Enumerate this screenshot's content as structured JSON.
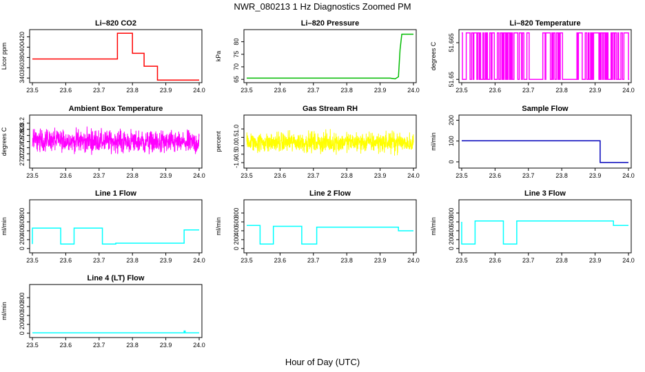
{
  "figure": {
    "title": "NWR_080213  1 Hz Diagnostics Zoomed PM",
    "xlabel": "Hour of Day (UTC)"
  },
  "chart_data": [
    {
      "type": "line",
      "title": "Li–820 CO2",
      "ylabel": "Licor ppm",
      "color": "#ff0000",
      "xlim": [
        23.5,
        24.0
      ],
      "xticks": [
        "23.5",
        "23.6",
        "23.7",
        "23.8",
        "23.9",
        "24.0"
      ],
      "ylim": [
        335,
        430
      ],
      "yticks": [
        340,
        360,
        380,
        400,
        420
      ],
      "series": [
        {
          "x": [
            23.5,
            23.755,
            23.755,
            23.8,
            23.8,
            23.835,
            23.835,
            23.875,
            23.875,
            24.0
          ],
          "y": [
            377,
            377,
            427,
            427,
            388,
            388,
            363,
            363,
            336,
            336
          ]
        }
      ]
    },
    {
      "type": "line",
      "title": "Li–820 Pressure",
      "ylabel": "kPa",
      "color": "#00bb00",
      "xlim": [
        23.5,
        24.0
      ],
      "xticks": [
        "23.5",
        "23.6",
        "23.7",
        "23.8",
        "23.9",
        "24.0"
      ],
      "ylim": [
        64.5,
        84
      ],
      "yticks": [
        65,
        70,
        75,
        80
      ],
      "series": [
        {
          "x": [
            23.5,
            23.93,
            23.945,
            23.955,
            23.96,
            23.965,
            24.0
          ],
          "y": [
            65.5,
            65.5,
            65.2,
            66,
            77,
            83,
            83
          ]
        }
      ]
    },
    {
      "type": "line",
      "title": "Li–820 Temperature",
      "ylabel": "degrees C",
      "color": "#ff00ff",
      "xlim": [
        23.5,
        24.0
      ],
      "xticks": [
        "23.5",
        "23.6",
        "23.7",
        "23.8",
        "23.9",
        "24.0"
      ],
      "ylim": [
        51.6495,
        51.6695
      ],
      "yticks": [
        51.65,
        51.665
      ],
      "series": [
        {
          "x": [
            23.5,
            24.0
          ],
          "y": [
            51.65,
            51.669
          ],
          "note": "rapid toggling between two levels"
        }
      ]
    },
    {
      "type": "line",
      "title": "Ambient Box Temperature",
      "ylabel": "degrees C",
      "color": "#ff00ff",
      "xlim": [
        23.5,
        24.0
      ],
      "xticks": [
        "23.5",
        "23.6",
        "23.7",
        "23.8",
        "23.9",
        "24.0"
      ],
      "ylim": [
        26.8,
        28.4
      ],
      "yticks": [
        27.0,
        27.2,
        27.4,
        27.6,
        27.8,
        28.0,
        28.2
      ],
      "series": [
        {
          "x": [
            23.5,
            24.0
          ],
          "y": [
            27.65,
            27.55
          ],
          "noise": 0.28
        }
      ]
    },
    {
      "type": "line",
      "title": "Gas Stream RH",
      "ylabel": "percent",
      "color": "#ffff00",
      "xlim": [
        23.5,
        24.0
      ],
      "xticks": [
        "23.5",
        "23.6",
        "23.7",
        "23.8",
        "23.9",
        "24.0"
      ],
      "ylim": [
        -1.2,
        1.7
      ],
      "yticks": [
        -1.0,
        -0.5,
        0.0,
        0.5,
        1.0
      ],
      "series": [
        {
          "x": [
            23.5,
            24.0
          ],
          "y": [
            0.2,
            0.2
          ],
          "noise": 0.45
        }
      ]
    },
    {
      "type": "line",
      "title": "Sample Flow",
      "ylabel": "ml/min",
      "color": "#0000bb",
      "xlim": [
        23.5,
        24.0
      ],
      "xticks": [
        "23.5",
        "23.6",
        "23.7",
        "23.8",
        "23.9",
        "24.0"
      ],
      "ylim": [
        -20,
        215
      ],
      "yticks": [
        0,
        100,
        200
      ],
      "series": [
        {
          "x": [
            23.5,
            23.915,
            23.915,
            24.0
          ],
          "y": [
            101,
            101,
            -3,
            -3
          ]
        }
      ]
    },
    {
      "type": "line",
      "title": "Line 1 Flow",
      "ylabel": "ml/min",
      "color": "#00ffff",
      "xlim": [
        23.5,
        24.0
      ],
      "xticks": [
        "23.5",
        "23.6",
        "23.7",
        "23.8",
        "23.9",
        "24.0"
      ],
      "ylim": [
        -50,
        1050
      ],
      "yticks": [
        0,
        200,
        400,
        600,
        800
      ],
      "series": [
        {
          "x": [
            23.5,
            23.5,
            23.585,
            23.585,
            23.625,
            23.625,
            23.71,
            23.71,
            23.75,
            23.75,
            23.955,
            23.955,
            24.0
          ],
          "y": [
            100,
            460,
            460,
            100,
            100,
            460,
            460,
            100,
            100,
            120,
            120,
            420,
            420
          ]
        }
      ]
    },
    {
      "type": "line",
      "title": "Line 2 Flow",
      "ylabel": "ml/min",
      "color": "#00ffff",
      "xlim": [
        23.5,
        24.0
      ],
      "xticks": [
        "23.5",
        "23.6",
        "23.7",
        "23.8",
        "23.9",
        "24.0"
      ],
      "ylim": [
        -50,
        1050
      ],
      "yticks": [
        0,
        200,
        400,
        600,
        800
      ],
      "series": [
        {
          "x": [
            23.5,
            23.54,
            23.54,
            23.58,
            23.58,
            23.665,
            23.665,
            23.71,
            23.71,
            23.955,
            23.955,
            24.0
          ],
          "y": [
            520,
            520,
            100,
            100,
            500,
            500,
            100,
            100,
            480,
            480,
            400,
            400
          ]
        }
      ]
    },
    {
      "type": "line",
      "title": "Line 3 Flow",
      "ylabel": "ml/min",
      "color": "#00ffff",
      "xlim": [
        23.5,
        24.0
      ],
      "xticks": [
        "23.5",
        "23.6",
        "23.7",
        "23.8",
        "23.9",
        "24.0"
      ],
      "ylim": [
        -50,
        1050
      ],
      "yticks": [
        0,
        200,
        400,
        600,
        800
      ],
      "series": [
        {
          "x": [
            23.5,
            23.5,
            23.54,
            23.54,
            23.625,
            23.625,
            23.665,
            23.665,
            23.955,
            23.955,
            24.0
          ],
          "y": [
            600,
            100,
            100,
            620,
            620,
            100,
            100,
            620,
            620,
            520,
            520
          ]
        }
      ]
    },
    {
      "type": "line",
      "title": "Line 4 (LT) Flow",
      "ylabel": "ml/min",
      "color": "#00ffff",
      "xlim": [
        23.5,
        24.0
      ],
      "xticks": [
        "23.5",
        "23.6",
        "23.7",
        "23.8",
        "23.9",
        "24.0"
      ],
      "ylim": [
        -50,
        1050
      ],
      "yticks": [
        0,
        200,
        400,
        600,
        800
      ],
      "series": [
        {
          "x": [
            23.5,
            23.955,
            23.955,
            23.958,
            23.958,
            24.0
          ],
          "y": [
            10,
            10,
            50,
            50,
            10,
            10
          ]
        }
      ]
    }
  ]
}
